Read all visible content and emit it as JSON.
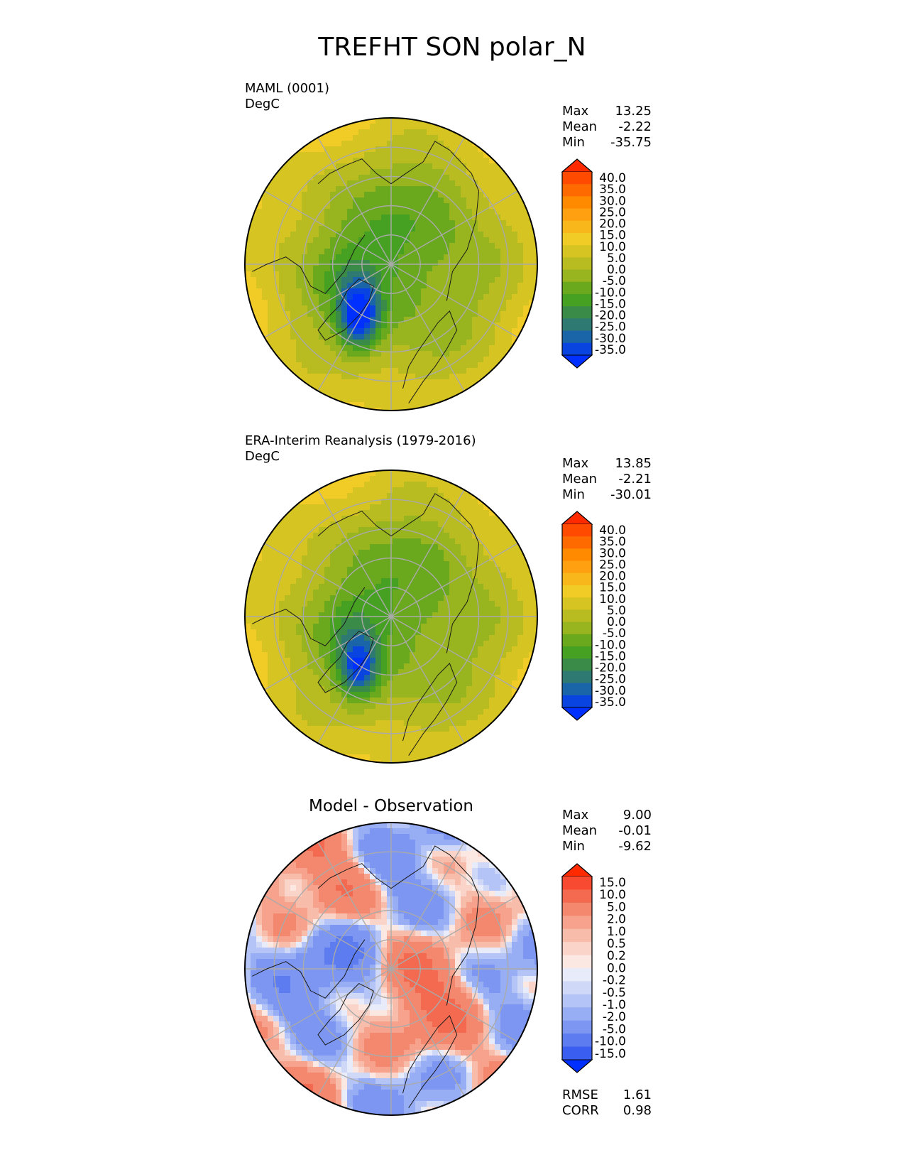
{
  "title": "TREFHT SON polar_N",
  "chart_data": [
    {
      "type": "heatmap",
      "projection": "north-polar-stereographic",
      "label": "MAML (0001)",
      "units": "DegC",
      "stats": {
        "max_label": "Max",
        "max": "13.25",
        "mean_label": "Mean",
        "mean": "-2.22",
        "min_label": "Min",
        "min": "-35.75"
      },
      "colorbar": {
        "ticks": [
          "40.0",
          "35.0",
          "30.0",
          "25.0",
          "20.0",
          "15.0",
          "10.0",
          "5.0",
          "0.0",
          "-5.0",
          "-10.0",
          "-15.0",
          "-20.0",
          "-25.0",
          "-30.0",
          "-35.0"
        ],
        "colors": [
          "#ff2a00",
          "#ff4a00",
          "#ff6a00",
          "#ff8a00",
          "#ffa010",
          "#f8b81c",
          "#f2cc26",
          "#d6c422",
          "#b8bc20",
          "#98b41e",
          "#6aa81e",
          "#46a022",
          "#3a8a48",
          "#2e7a72",
          "#1a64a8",
          "#0a44e0",
          "#0030ff"
        ],
        "extend": "both"
      },
      "field": {
        "pole": -12,
        "rim": 10,
        "cold_spot": -35
      }
    },
    {
      "type": "heatmap",
      "projection": "north-polar-stereographic",
      "label": "ERA-Interim Reanalysis (1979-2016)",
      "units": "DegC",
      "stats": {
        "max_label": "Max",
        "max": "13.85",
        "mean_label": "Mean",
        "mean": "-2.21",
        "min_label": "Min",
        "min": "-30.01"
      },
      "colorbar": {
        "ticks": [
          "40.0",
          "35.0",
          "30.0",
          "25.0",
          "20.0",
          "15.0",
          "10.0",
          "5.0",
          "0.0",
          "-5.0",
          "-10.0",
          "-15.0",
          "-20.0",
          "-25.0",
          "-30.0",
          "-35.0"
        ],
        "colors": [
          "#ff2a00",
          "#ff4a00",
          "#ff6a00",
          "#ff8a00",
          "#ffa010",
          "#f8b81c",
          "#f2cc26",
          "#d6c422",
          "#b8bc20",
          "#98b41e",
          "#6aa81e",
          "#46a022",
          "#3a8a48",
          "#2e7a72",
          "#1a64a8",
          "#0a44e0",
          "#0030ff"
        ],
        "extend": "both"
      },
      "field": {
        "pole": -11,
        "rim": 10,
        "cold_spot": -30
      }
    },
    {
      "type": "heatmap",
      "projection": "north-polar-stereographic",
      "label": "Model - Observation",
      "stats": {
        "max_label": "Max",
        "max": "9.00",
        "mean_label": "Mean",
        "mean": "-0.01",
        "min_label": "Min",
        "min": "-9.62"
      },
      "colorbar": {
        "ticks": [
          "15.0",
          "10.0",
          "5.0",
          "2.0",
          "1.0",
          "0.5",
          "0.2",
          "0.0",
          "-0.2",
          "-0.5",
          "-1.0",
          "-2.0",
          "-5.0",
          "-10.0",
          "-15.0"
        ],
        "colors": [
          "#ff2a00",
          "#f84a30",
          "#f46a50",
          "#f4886e",
          "#f6a28c",
          "#f8bcaa",
          "#fad4c8",
          "#fbe8e2",
          "#e8ecfa",
          "#d0d8f8",
          "#b4c4f6",
          "#98aef4",
          "#7c96f2",
          "#5c7cf0",
          "#3a5ef0",
          "#0030ff"
        ],
        "extend": "both"
      },
      "metrics": {
        "rmse_label": "RMSE",
        "rmse": "1.61",
        "corr_label": "CORR",
        "corr": "0.98"
      }
    }
  ]
}
